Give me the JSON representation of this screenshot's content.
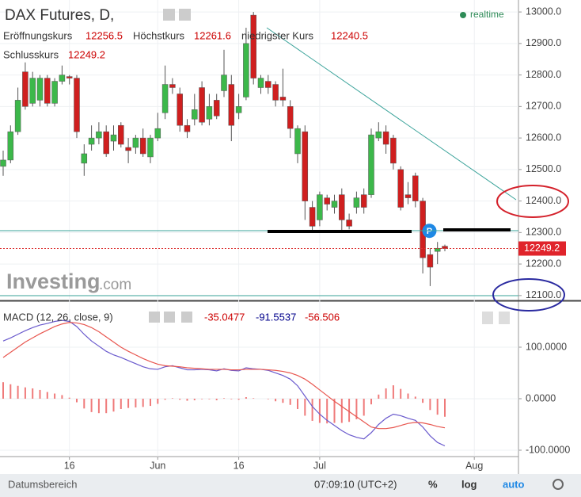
{
  "chart_data": [
    {
      "type": "candlestick",
      "title": "DAX Futures, D,",
      "status": "realtime",
      "legend": {
        "open": "Eröffnungskurs",
        "high": "Höchstkurs",
        "low": "niedrigster Kurs",
        "close": "Schlusskurs"
      },
      "watermark": [
        "Investing",
        ".com"
      ],
      "marker": "P",
      "up_color": "#3cb84a",
      "down_color": "#cf1f1f",
      "open": [
        12510,
        12530,
        12620,
        12810,
        12710,
        12720,
        12790,
        12710,
        12780,
        12795,
        12790,
        12520,
        12580,
        12600,
        12620,
        12590,
        12640,
        12570,
        12570,
        12600,
        12540,
        12600,
        12680,
        12770,
        12740,
        12640,
        12660,
        12760,
        12660,
        12720,
        12750,
        12770,
        12680,
        12730,
        12990,
        12760,
        12780,
        12770,
        12730,
        12700,
        12550,
        12620,
        12380,
        12340,
        12410,
        12380,
        12420,
        12340,
        12380,
        12420,
        12420,
        12600,
        12620,
        12600,
        12500,
        12420,
        12480,
        12400,
        12230,
        12240,
        12256.5
      ],
      "close": [
        12530,
        12620,
        12720,
        12700,
        12790,
        12790,
        12710,
        12780,
        12800,
        12790,
        12620,
        12550,
        12600,
        12620,
        12550,
        12610,
        12580,
        12560,
        12600,
        12550,
        12600,
        12630,
        12770,
        12760,
        12640,
        12620,
        12690,
        12650,
        12700,
        12670,
        12800,
        12640,
        12700,
        12900,
        12790,
        12790,
        12760,
        12720,
        12720,
        12630,
        12630,
        12400,
        12320,
        12420,
        12390,
        12400,
        12340,
        12320,
        12410,
        12380,
        12610,
        12620,
        12580,
        12520,
        12380,
        12410,
        12400,
        12220,
        12190,
        12250,
        12249.2
      ],
      "high": [
        12560,
        12640,
        12760,
        12840,
        12810,
        12800,
        12800,
        12790,
        12830,
        12800,
        12800,
        12580,
        12640,
        12650,
        12640,
        12640,
        12650,
        12600,
        12610,
        12630,
        12610,
        12680,
        12830,
        12790,
        12760,
        12660,
        12740,
        12780,
        12740,
        12740,
        12880,
        12800,
        12740,
        12950,
        13000,
        12800,
        12800,
        12780,
        12820,
        12720,
        12640,
        12640,
        12400,
        12430,
        12420,
        12420,
        12440,
        12360,
        12430,
        12440,
        12630,
        12650,
        12640,
        12610,
        12510,
        12460,
        12490,
        12410,
        12250,
        12270,
        12261.6
      ],
      "low": [
        12480,
        12520,
        12610,
        12690,
        12700,
        12700,
        12700,
        12700,
        12770,
        12770,
        12600,
        12480,
        12560,
        12580,
        12540,
        12560,
        12570,
        12520,
        12550,
        12540,
        12520,
        12590,
        12660,
        12740,
        12620,
        12600,
        12640,
        12640,
        12640,
        12660,
        12730,
        12590,
        12660,
        12720,
        12770,
        12740,
        12740,
        12700,
        12700,
        12600,
        12520,
        12340,
        12300,
        12320,
        12370,
        12360,
        12300,
        12310,
        12360,
        12360,
        12410,
        12590,
        12550,
        12500,
        12370,
        12390,
        12380,
        12170,
        12130,
        12200,
        12240.5
      ],
      "xlim": [
        -0.43,
        70
      ],
      "xticks": [
        {
          "value": 9,
          "label": "16"
        },
        {
          "value": 21,
          "label": "Jun"
        },
        {
          "value": 32,
          "label": "16"
        },
        {
          "value": 43,
          "label": "Jul"
        },
        {
          "value": 64,
          "label": "Aug"
        }
      ],
      "ylim": [
        12087,
        13038
      ],
      "yticks": [
        {
          "value": 12100,
          "label": "12100.0"
        },
        {
          "value": 12200,
          "label": "12200.0"
        },
        {
          "value": 12300,
          "label": "12300.0"
        },
        {
          "value": 12400,
          "label": "12400.0"
        },
        {
          "value": 12500,
          "label": "12500.0"
        },
        {
          "value": 12600,
          "label": "12600.0"
        },
        {
          "value": 12700,
          "label": "12700.0"
        },
        {
          "value": 12800,
          "label": "12800.0"
        },
        {
          "value": 12900,
          "label": "12900.0"
        },
        {
          "value": 13000,
          "label": "13000.0"
        }
      ]
    },
    {
      "type": "macd",
      "title": "MACD (12, 26, close, 9)",
      "xlim": [
        -0.43,
        70
      ],
      "ylim": [
        -110.8,
        184.6
      ],
      "yticks": [
        {
          "value": 100,
          "label": "100.0000"
        },
        {
          "value": 0,
          "label": "0.0000"
        },
        {
          "value": -100,
          "label": "-100.0000"
        }
      ],
      "series": [
        {
          "name": "histogram",
          "color": "#ef7a7a",
          "values": [
            32,
            28,
            25,
            22,
            20,
            17,
            13,
            10,
            7,
            2,
            -7,
            -19,
            -26,
            -28,
            -28,
            -25,
            -20,
            -18,
            -17,
            -16,
            -14,
            -10,
            -2,
            1,
            -2,
            -4,
            -3,
            -1,
            -1,
            -3,
            1,
            -1,
            -2,
            3,
            1,
            0,
            -1,
            -5,
            -8,
            -12,
            -20,
            -33,
            -43,
            -47,
            -48,
            -47,
            -47,
            -45,
            -40,
            -33,
            -11,
            8,
            20,
            26,
            19,
            10,
            4,
            -8,
            -22,
            -31,
            -35.0477
          ]
        },
        {
          "name": "macd",
          "color": "#6a5acd",
          "values": [
            112,
            118,
            125,
            132,
            138,
            143,
            146,
            150,
            152,
            150,
            140,
            125,
            112,
            102,
            92,
            85,
            80,
            74,
            68,
            62,
            58,
            57,
            62,
            64,
            60,
            56,
            56,
            57,
            56,
            54,
            58,
            55,
            54,
            60,
            58,
            57,
            55,
            50,
            45,
            38,
            25,
            5,
            -15,
            -30,
            -42,
            -52,
            -62,
            -70,
            -75,
            -78,
            -66,
            -50,
            -38,
            -30,
            -33,
            -38,
            -42,
            -55,
            -72,
            -85,
            -91.5537
          ]
        },
        {
          "name": "signal",
          "color": "#e8564f",
          "values": [
            80,
            90,
            100,
            110,
            118,
            126,
            133,
            140,
            145,
            148,
            147,
            144,
            138,
            130,
            120,
            110,
            100,
            92,
            85,
            78,
            72,
            67,
            64,
            63,
            62,
            60,
            59,
            58,
            57,
            57,
            57,
            56,
            56,
            57,
            57,
            57,
            56,
            55,
            53,
            50,
            45,
            38,
            28,
            17,
            6,
            -5,
            -15,
            -25,
            -35,
            -45,
            -55,
            -58,
            -58,
            -56,
            -52,
            -48,
            -46,
            -47,
            -50,
            -54,
            -56.506
          ]
        }
      ]
    }
  ],
  "toolbar": {
    "range": "Datumsbereich",
    "time": "07:09:10 (UTC+2)",
    "percent": "%",
    "log": "log",
    "auto": "auto"
  }
}
